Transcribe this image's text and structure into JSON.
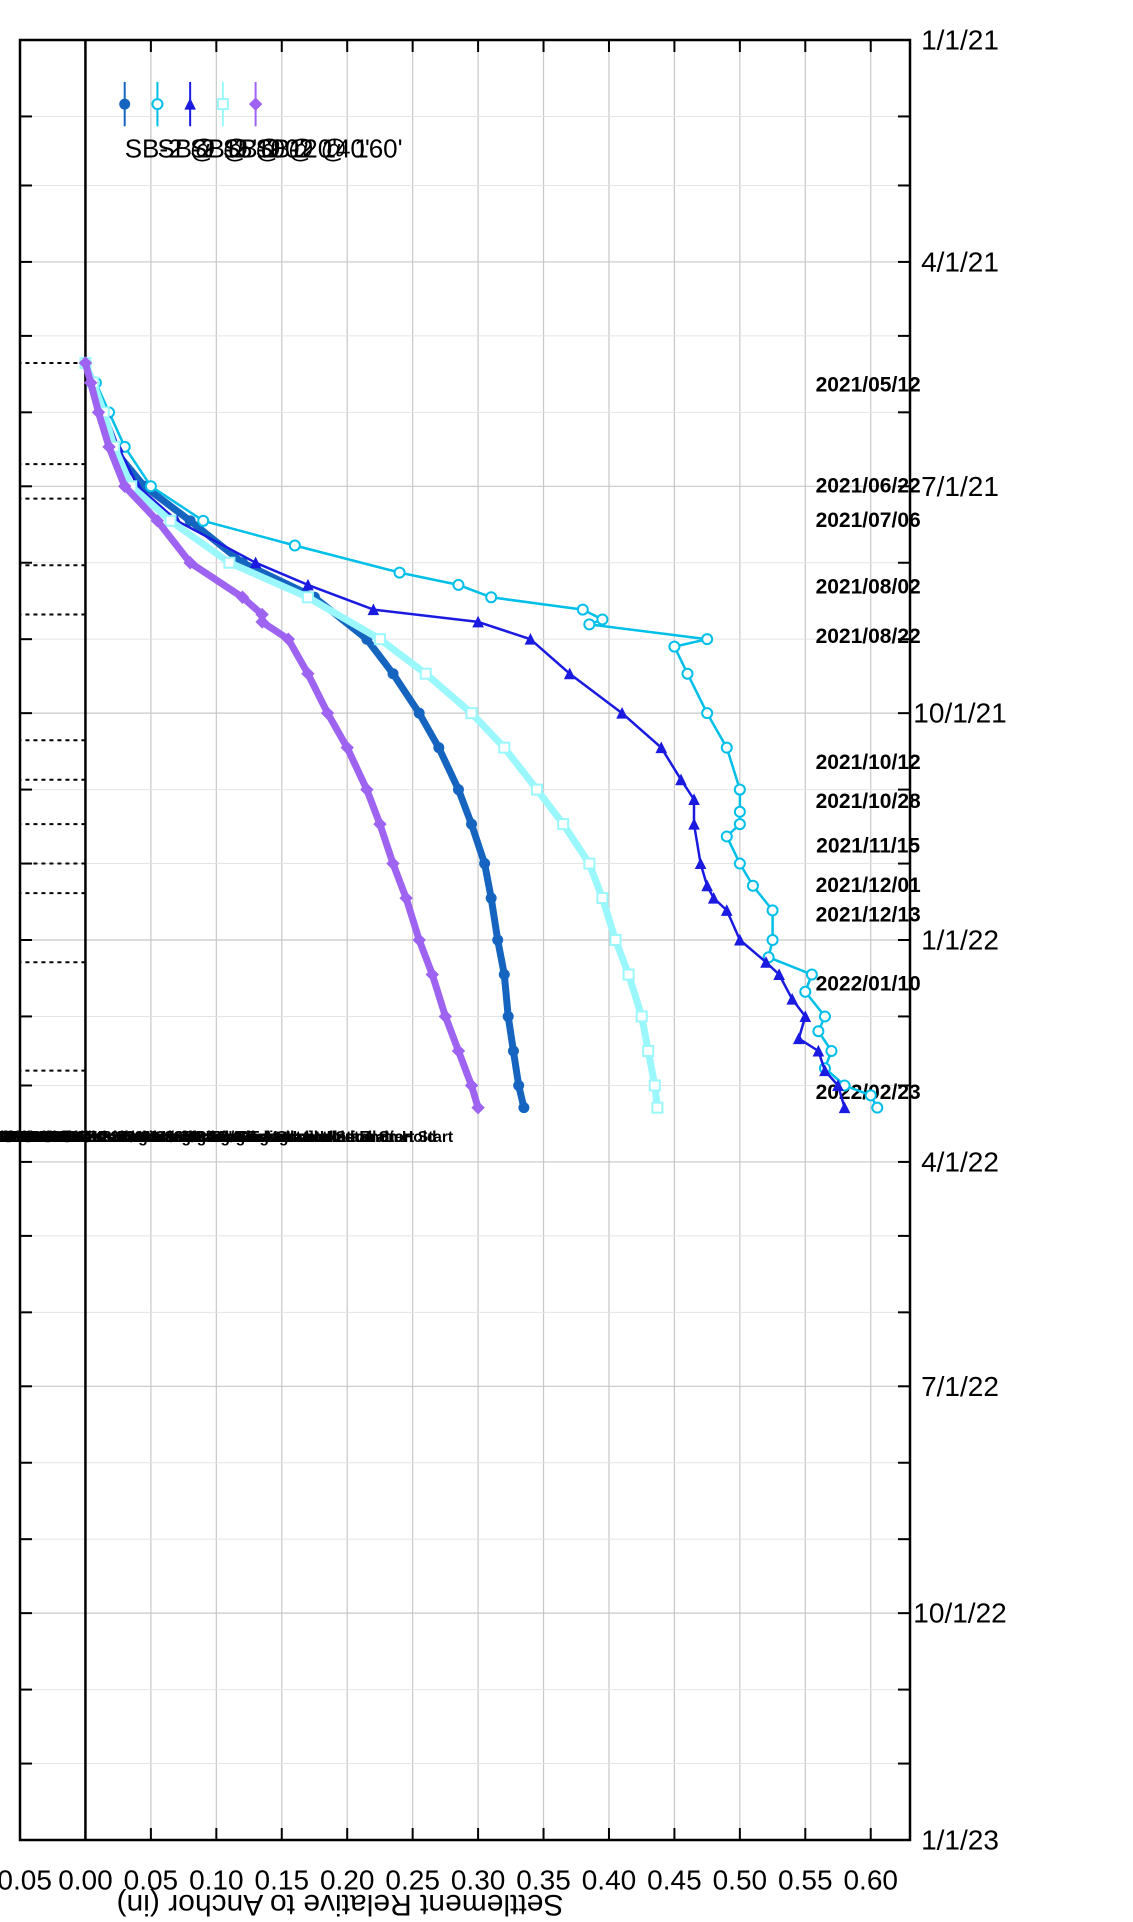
{
  "chart_data": {
    "type": "line",
    "ylabel": "Settlement Relative to Anchor (in)",
    "x_ticks": [
      "1/1/21",
      "4/1/21",
      "7/1/21",
      "10/1/21",
      "1/1/22",
      "4/1/22",
      "7/1/22",
      "10/1/22",
      "1/1/23"
    ],
    "y_ticks": [
      "-0.05",
      "0.00",
      "0.05",
      "0.10",
      "0.15",
      "0.20",
      "0.25",
      "0.30",
      "0.35",
      "0.40",
      "0.45",
      "0.50",
      "0.55",
      "0.60"
    ],
    "xlim": [
      "2021-01-01",
      "2023-01-01"
    ],
    "ylim": [
      -0.05,
      0.63
    ],
    "grid": true,
    "legend_position": "bottom-left",
    "event_dates": [
      {
        "date": "2021-05-12",
        "label": "2021/05/12"
      },
      {
        "date": "2021-06-22",
        "label": "2021/06/22"
      },
      {
        "date": "2021-07-06",
        "label": "2021/07/06"
      },
      {
        "date": "2021-08-02",
        "label": "2021/08/02"
      },
      {
        "date": "2021-08-22",
        "label": "2021/08/22"
      },
      {
        "date": "2021-10-12",
        "label": "2021/10/12"
      },
      {
        "date": "2021-10-28",
        "label": "2021/10/28"
      },
      {
        "date": "2021-11-15",
        "label": "2021/11/15"
      },
      {
        "date": "2021-12-01",
        "label": "2021/12/01"
      },
      {
        "date": "2021-12-13",
        "label": "2021/12/13"
      },
      {
        "date": "2022-01-10",
        "label": "2022/01/10"
      },
      {
        "date": "2022-02-23",
        "label": "2022/02/23"
      }
    ],
    "annotations": [
      "2021/05/12: Fremont St. 36\" Casing Installation Start",
      "2021/06/22: Fremont St. 36\" Casing Installation End",
      "2021/07/06: Mission St. 36\" Casing Installation Start",
      "2021/07/09: Fremont St. 24\" Casing/Rock Socket Installation Start",
      "2021/08/02: Mission St. 36\" Casing Installation on Hold",
      "2021/08/22: Fremont St. 24\" Casing/Rock Socket Installation on Hold",
      "2021/10/12-13: 36\" Pile Installation / Vibration Test",
      "2021/10/28: Mission St. 36\" Casing Installation Restart",
      "2021/11/15-19: 24\" Pile Installation / Vibration Test",
      "2021/12/01-05: 24\" Pile Installation",
      "2021/12/13-17: 24\" Pile Installation",
      "2022/01/10: 24\" Pile Installation Restart",
      "2022/02/23: 24\" Pile Installation Restart"
    ],
    "series": [
      {
        "name": "SB-2 @ 15'",
        "color": "#1565c0",
        "marker": "circle-filled",
        "x": [
          "2021-05-12",
          "2021-05-20",
          "2021-06-01",
          "2021-06-15",
          "2021-07-01",
          "2021-07-15",
          "2021-08-01",
          "2021-08-15",
          "2021-09-01",
          "2021-09-15",
          "2021-10-01",
          "2021-10-15",
          "2021-11-01",
          "2021-11-15",
          "2021-12-01",
          "2021-12-15",
          "2022-01-01",
          "2022-01-15",
          "2022-02-01",
          "2022-02-15",
          "2022-03-01",
          "2022-03-10"
        ],
        "values": [
          0.0,
          0.005,
          0.012,
          0.02,
          0.045,
          0.08,
          0.12,
          0.175,
          0.215,
          0.235,
          0.255,
          0.27,
          0.285,
          0.295,
          0.305,
          0.31,
          0.315,
          0.32,
          0.323,
          0.327,
          0.331,
          0.335
        ]
      },
      {
        "name": "SB-2 @ 100'",
        "color": "#00bfe8",
        "marker": "circle-open",
        "x": [
          "2021-05-12",
          "2021-05-20",
          "2021-06-01",
          "2021-06-15",
          "2021-07-01",
          "2021-07-15",
          "2021-07-25",
          "2021-08-05",
          "2021-08-10",
          "2021-08-15",
          "2021-08-20",
          "2021-08-24",
          "2021-08-26",
          "2021-09-01",
          "2021-09-04",
          "2021-09-15",
          "2021-10-01",
          "2021-10-15",
          "2021-11-01",
          "2021-11-10",
          "2021-11-15",
          "2021-11-20",
          "2021-12-01",
          "2021-12-10",
          "2021-12-20",
          "2022-01-01",
          "2022-01-08",
          "2022-01-15",
          "2022-01-22",
          "2022-02-01",
          "2022-02-07",
          "2022-02-15",
          "2022-02-22",
          "2022-03-01",
          "2022-03-05",
          "2022-03-10"
        ],
        "values": [
          0.0,
          0.008,
          0.018,
          0.03,
          0.05,
          0.09,
          0.16,
          0.24,
          0.285,
          0.31,
          0.38,
          0.395,
          0.385,
          0.475,
          0.45,
          0.46,
          0.475,
          0.49,
          0.5,
          0.5,
          0.5,
          0.49,
          0.5,
          0.51,
          0.525,
          0.525,
          0.522,
          0.555,
          0.55,
          0.565,
          0.56,
          0.57,
          0.565,
          0.58,
          0.6,
          0.605
        ]
      },
      {
        "name": "SB-2 @ 120'",
        "color": "#1a1ae0",
        "marker": "triangle",
        "x": [
          "2021-05-12",
          "2021-05-20",
          "2021-06-01",
          "2021-06-15",
          "2021-07-01",
          "2021-07-15",
          "2021-08-01",
          "2021-08-10",
          "2021-08-20",
          "2021-08-25",
          "2021-09-01",
          "2021-09-15",
          "2021-10-01",
          "2021-10-15",
          "2021-10-28",
          "2021-11-05",
          "2021-11-15",
          "2021-12-01",
          "2021-12-10",
          "2021-12-15",
          "2021-12-20",
          "2022-01-01",
          "2022-01-10",
          "2022-01-15",
          "2022-01-25",
          "2022-02-01",
          "2022-02-10",
          "2022-02-15",
          "2022-02-23",
          "2022-03-01",
          "2022-03-10"
        ],
        "values": [
          0.0,
          0.006,
          0.015,
          0.025,
          0.04,
          0.07,
          0.13,
          0.17,
          0.22,
          0.3,
          0.34,
          0.37,
          0.41,
          0.44,
          0.455,
          0.465,
          0.465,
          0.47,
          0.475,
          0.48,
          0.49,
          0.5,
          0.52,
          0.53,
          0.54,
          0.55,
          0.545,
          0.56,
          0.565,
          0.575,
          0.58
        ]
      },
      {
        "name": "SB-2 @ 140'",
        "color": "#9af7fb",
        "marker": "square-open",
        "x": [
          "2021-05-12",
          "2021-05-20",
          "2021-06-01",
          "2021-06-15",
          "2021-07-01",
          "2021-07-15",
          "2021-08-01",
          "2021-08-15",
          "2021-09-01",
          "2021-09-15",
          "2021-10-01",
          "2021-10-15",
          "2021-11-01",
          "2021-11-15",
          "2021-12-01",
          "2021-12-15",
          "2022-01-01",
          "2022-01-15",
          "2022-02-01",
          "2022-02-15",
          "2022-03-01",
          "2022-03-10"
        ],
        "values": [
          0.0,
          0.006,
          0.014,
          0.022,
          0.035,
          0.065,
          0.11,
          0.17,
          0.225,
          0.26,
          0.295,
          0.32,
          0.345,
          0.365,
          0.385,
          0.395,
          0.405,
          0.415,
          0.425,
          0.43,
          0.435,
          0.437
        ]
      },
      {
        "name": "SB-2 @ 160'",
        "color": "#9e63f0",
        "marker": "diamond",
        "x": [
          "2021-05-12",
          "2021-05-20",
          "2021-06-01",
          "2021-06-15",
          "2021-07-01",
          "2021-07-15",
          "2021-08-01",
          "2021-08-15",
          "2021-08-22",
          "2021-08-25",
          "2021-09-01",
          "2021-09-15",
          "2021-10-01",
          "2021-10-15",
          "2021-11-01",
          "2021-11-15",
          "2021-12-01",
          "2021-12-15",
          "2022-01-01",
          "2022-01-15",
          "2022-02-01",
          "2022-02-15",
          "2022-03-01",
          "2022-03-10"
        ],
        "values": [
          0.0,
          0.004,
          0.01,
          0.018,
          0.03,
          0.055,
          0.08,
          0.12,
          0.135,
          0.135,
          0.155,
          0.17,
          0.185,
          0.2,
          0.215,
          0.225,
          0.235,
          0.245,
          0.255,
          0.265,
          0.275,
          0.285,
          0.295,
          0.3
        ]
      }
    ]
  }
}
